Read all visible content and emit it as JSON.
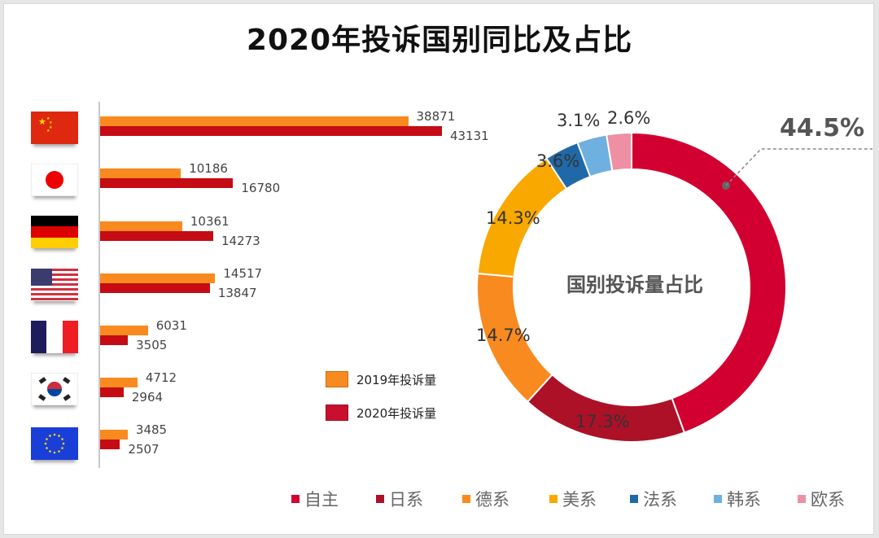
{
  "title": "2020年投诉国别同比及占比",
  "chart_data": [
    {
      "type": "bar",
      "orientation": "horizontal",
      "categories": [
        "China",
        "Japan",
        "Germany",
        "USA",
        "France",
        "Korea",
        "EU"
      ],
      "category_icons": [
        "flag-china-icon",
        "flag-japan-icon",
        "flag-germany-icon",
        "flag-usa-icon",
        "flag-france-icon",
        "flag-korea-icon",
        "flag-eu-icon"
      ],
      "series": [
        {
          "name": "2019年投诉量",
          "color": "#f98a1f",
          "values": [
            38871,
            10186,
            10361,
            14517,
            6031,
            4712,
            3485
          ]
        },
        {
          "name": "2020年投诉量",
          "color": "#c50b14",
          "values": [
            43131,
            16780,
            14273,
            13847,
            3505,
            2964,
            2507
          ]
        }
      ],
      "xlim": [
        0,
        43131
      ],
      "grid": false,
      "legend_position": "bottom-right",
      "data_labels": true
    },
    {
      "type": "pie",
      "subtype": "donut",
      "center_label": "国别投诉量占比",
      "slices": [
        {
          "label": "自主",
          "value": 44.5,
          "display": "44.5%",
          "color": "#d20030"
        },
        {
          "label": "日系",
          "value": 17.3,
          "display": "17.3%",
          "color": "#ac1128"
        },
        {
          "label": "德系",
          "value": 14.7,
          "display": "14.7%",
          "color": "#f98a1f"
        },
        {
          "label": "美系",
          "value": 14.3,
          "display": "14.3%",
          "color": "#f9a800"
        },
        {
          "label": "法系",
          "value": 3.6,
          "display": "3.6%",
          "color": "#2069a8"
        },
        {
          "label": "韩系",
          "value": 3.1,
          "display": "3.1%",
          "color": "#6eb0e0"
        },
        {
          "label": "欧系",
          "value": 2.6,
          "display": "2.6%",
          "color": "#ee8fa3"
        }
      ],
      "legend_position": "bottom",
      "callout": "44.5%"
    }
  ],
  "bar_legend": [
    {
      "label": "2019年投诉量",
      "color": "#f98a1f"
    },
    {
      "label": "2020年投诉量",
      "color": "#c8102e"
    }
  ]
}
